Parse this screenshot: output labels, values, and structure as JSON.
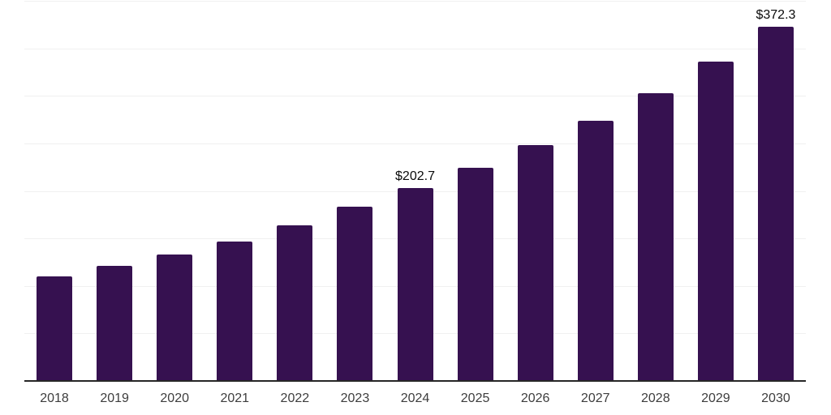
{
  "chart_data": {
    "type": "bar",
    "title": "",
    "xlabel": "",
    "ylabel": "",
    "categories": [
      "2018",
      "2019",
      "2020",
      "2021",
      "2022",
      "2023",
      "2024",
      "2025",
      "2026",
      "2027",
      "2028",
      "2029",
      "2030"
    ],
    "values": [
      110.0,
      121.4,
      132.8,
      146.5,
      163.5,
      183.1,
      202.7,
      223.9,
      248.0,
      273.8,
      302.8,
      336.1,
      372.3
    ],
    "value_labels": [
      "",
      "",
      "",
      "",
      "",
      "",
      "$202.7",
      "",
      "",
      "",
      "",
      "",
      "$372.3"
    ],
    "ylim": [
      0,
      400
    ],
    "grid": true,
    "gridline_step": 50,
    "legend": false,
    "colors": {
      "bar": "#361150",
      "axis_line": "#262626",
      "gridline": "#f0f0f0",
      "tick_label": "#3d3d3d",
      "value_label": "#0a0a0a",
      "background": "#ffffff"
    }
  }
}
